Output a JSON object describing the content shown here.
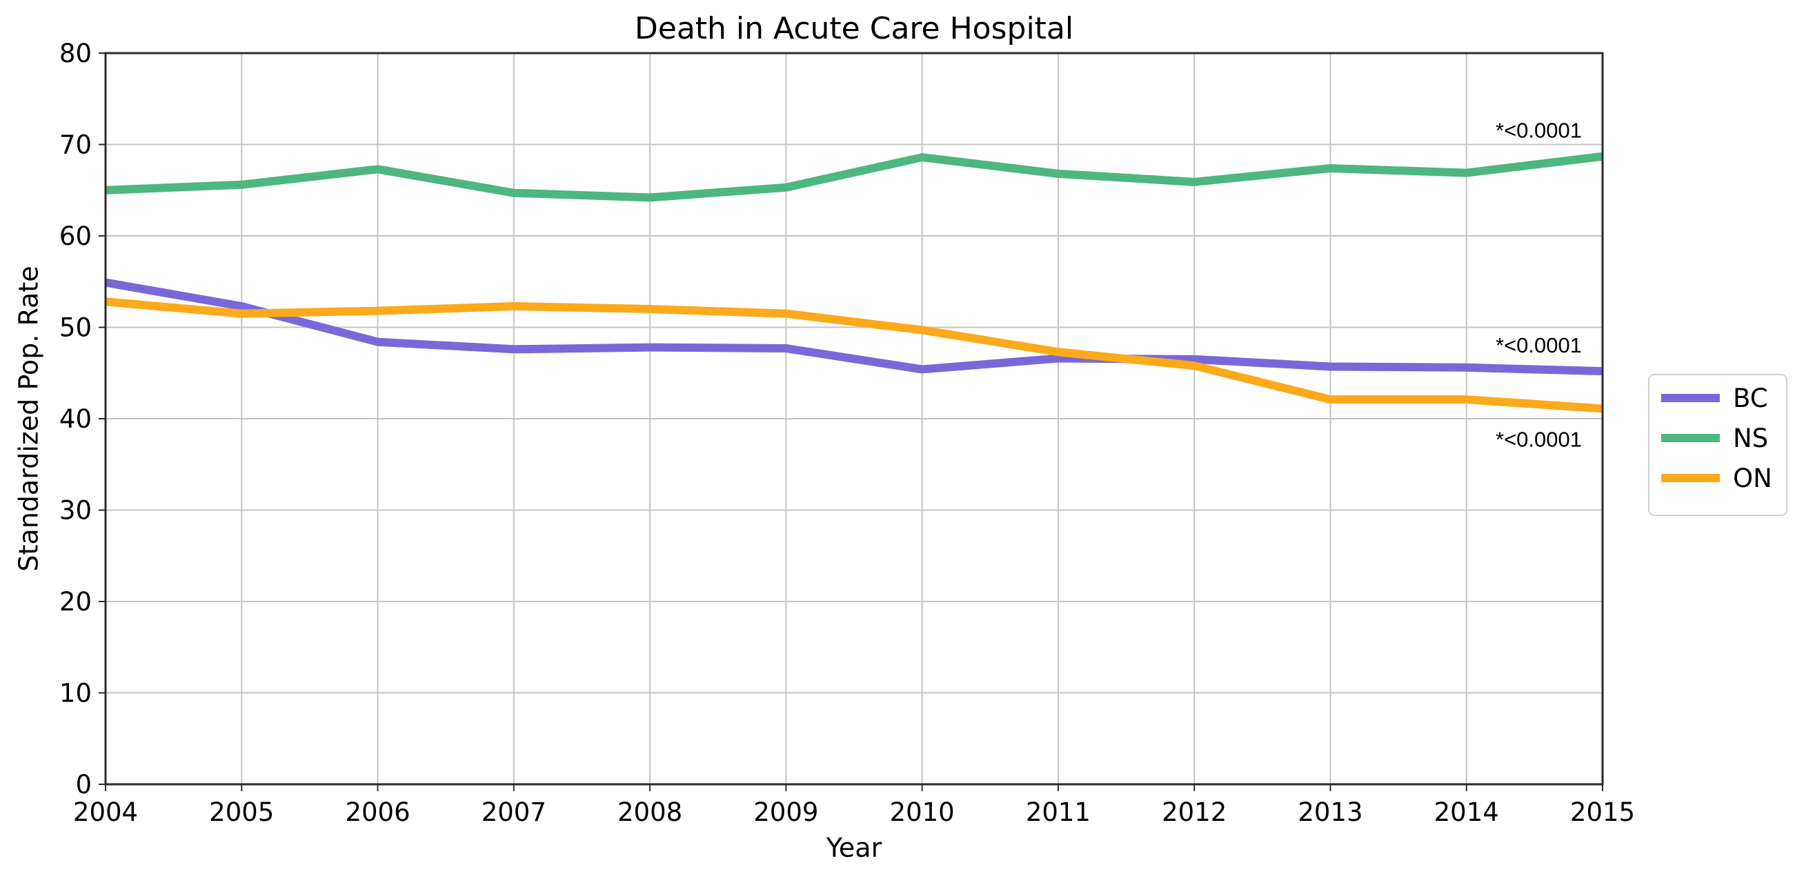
{
  "chart_data": {
    "type": "line",
    "title": "Death in Acute Care Hospital",
    "xlabel": "Year",
    "ylabel": "Standardized Pop. Rate",
    "x": [
      2004,
      2005,
      2006,
      2007,
      2008,
      2009,
      2010,
      2011,
      2012,
      2013,
      2014,
      2015
    ],
    "x_tick_labels": [
      "2004",
      "2005",
      "2006",
      "2007",
      "2008",
      "2009",
      "2010",
      "2011",
      "2012",
      "2013",
      "2014",
      "2015"
    ],
    "xlim": [
      2004,
      2015
    ],
    "ylim": [
      0,
      80
    ],
    "y_ticks": [
      0,
      10,
      20,
      30,
      40,
      50,
      60,
      70,
      80
    ],
    "y_tick_labels": [
      "0",
      "10",
      "20",
      "30",
      "40",
      "50",
      "60",
      "70",
      "80"
    ],
    "grid": true,
    "legend_position": "right",
    "series": [
      {
        "name": "BC",
        "color": "#7a68d8",
        "values": [
          54.9,
          52.3,
          48.4,
          47.6,
          47.8,
          47.7,
          45.4,
          46.6,
          46.5,
          45.7,
          45.6,
          45.2
        ]
      },
      {
        "name": "NS",
        "color": "#4db77f",
        "values": [
          65.0,
          65.6,
          67.3,
          64.7,
          64.2,
          65.3,
          68.6,
          66.8,
          65.9,
          67.4,
          66.9,
          68.7
        ]
      },
      {
        "name": "ON",
        "color": "#fbaa1c",
        "values": [
          52.8,
          51.5,
          51.8,
          52.3,
          52.0,
          51.5,
          49.7,
          47.3,
          45.8,
          42.1,
          42.1,
          41.1
        ]
      }
    ],
    "annotations": [
      {
        "text": "*<0.0001",
        "x": 2015,
        "y": 71.5,
        "align": "right"
      },
      {
        "text": "*<0.0001",
        "x": 2015,
        "y": 48.0,
        "align": "right"
      },
      {
        "text": "*<0.0001",
        "x": 2015,
        "y": 37.7,
        "align": "right"
      }
    ]
  }
}
